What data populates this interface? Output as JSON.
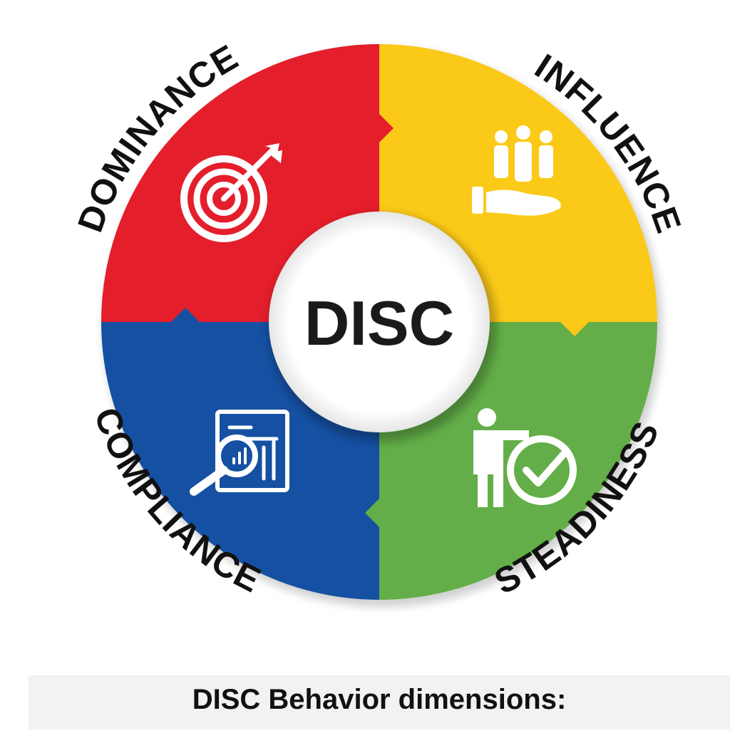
{
  "center": {
    "label": "DISC"
  },
  "segments": [
    {
      "key": "dominance",
      "label": "DOMINANCE",
      "color": "#e41e2b",
      "icon": "target-arrow-icon"
    },
    {
      "key": "influence",
      "label": "INFLUENCE",
      "color": "#fbc918",
      "icon": "people-on-hand-icon"
    },
    {
      "key": "steadiness",
      "label": "STEADINESS",
      "color": "#63ae48",
      "icon": "person-with-checkmark-icon"
    },
    {
      "key": "compliance",
      "label": "COMPLIANCE",
      "color": "#1550a2",
      "icon": "report-magnifier-icon"
    }
  ],
  "caption": "DISC Behavior dimensions:"
}
